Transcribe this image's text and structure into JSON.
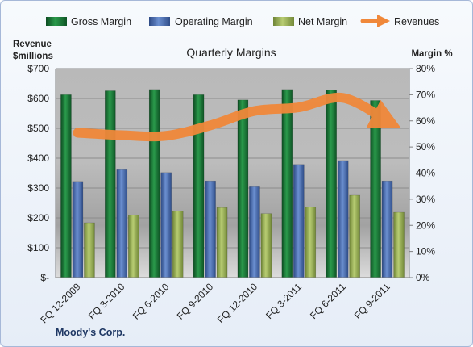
{
  "chart_data": {
    "type": "bar",
    "title": "Quarterly Margins",
    "footer": "Moody's Corp.",
    "categories": [
      "FQ 12-2009",
      "FQ 3-2010",
      "FQ 6-2010",
      "FQ 9-2010",
      "FQ 12-2010",
      "FQ 3-2011",
      "FQ 6-2011",
      "FQ 9-2011"
    ],
    "series": [
      {
        "name": "Gross Margin",
        "axis": "right",
        "color": "#1e7b3c",
        "values": [
          70,
          71.5,
          72,
          70,
          68,
          72,
          71.8,
          67.8
        ]
      },
      {
        "name": "Operating Margin",
        "axis": "right",
        "color": "#4a6fb3",
        "values": [
          36.8,
          41.3,
          40.2,
          37,
          34.8,
          43.3,
          44.8,
          37
        ]
      },
      {
        "name": "Net Margin",
        "axis": "right",
        "color": "#9cb358",
        "values": [
          21,
          24,
          25.5,
          26.8,
          24.5,
          27,
          31.5,
          25
        ]
      },
      {
        "name": "Revenues",
        "axis": "left",
        "type": "line",
        "color": "#f0883a",
        "values": [
          485,
          477,
          475,
          510,
          558,
          570,
          602,
          525
        ]
      }
    ],
    "y_left": {
      "label_line1": "Revenue",
      "label_line2": "$millions",
      "min": 0,
      "max": 700,
      "ticks": [
        "$-",
        "$100",
        "$200",
        "$300",
        "$400",
        "$500",
        "$600",
        "$700"
      ]
    },
    "y_right": {
      "label": "Margin %",
      "min": 0,
      "max": 80,
      "ticks": [
        "0%",
        "10%",
        "20%",
        "30%",
        "40%",
        "50%",
        "60%",
        "70%",
        "80%"
      ]
    },
    "grid": true,
    "legend_position": "top"
  }
}
